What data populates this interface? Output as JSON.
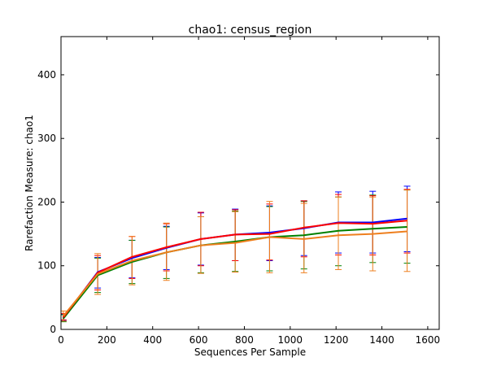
{
  "chart_data": {
    "type": "line",
    "title": "chao1: census_region",
    "xlabel": "Sequences Per Sample",
    "ylabel": "Rarefaction Measure: chao1",
    "xlim": [
      0,
      1650
    ],
    "ylim": [
      0,
      460
    ],
    "xticks": [
      0,
      200,
      400,
      600,
      800,
      1000,
      1200,
      1400,
      1600
    ],
    "yticks": [
      0,
      100,
      200,
      300,
      400
    ],
    "x": [
      10,
      160,
      310,
      460,
      610,
      760,
      910,
      1060,
      1210,
      1360,
      1510
    ],
    "series": [
      {
        "name": "blue",
        "color": "#0000ff",
        "values": [
          18,
          90,
          112,
          128,
          142,
          149,
          152,
          159,
          168,
          168,
          174
        ],
        "err_low": [
          14,
          65,
          81,
          94,
          101,
          108,
          108,
          116,
          120,
          120,
          122
        ],
        "err_high": [
          24,
          113,
          140,
          162,
          183,
          189,
          194,
          202,
          216,
          217,
          225
        ]
      },
      {
        "name": "green",
        "color": "#008000",
        "values": [
          17,
          85,
          106,
          121,
          132,
          138,
          145,
          148,
          155,
          158,
          161
        ],
        "err_low": [
          12,
          58,
          72,
          80,
          89,
          91,
          92,
          95,
          100,
          105,
          104
        ],
        "err_high": [
          23,
          112,
          140,
          161,
          177,
          186,
          193,
          201,
          208,
          211,
          219
        ]
      },
      {
        "name": "red",
        "color": "#ff0000",
        "values": [
          19,
          89,
          114,
          129,
          142,
          149,
          150,
          160,
          167,
          166,
          171
        ],
        "err_low": [
          15,
          62,
          80,
          92,
          100,
          108,
          109,
          114,
          117,
          117,
          120
        ],
        "err_high": [
          25,
          116,
          146,
          166,
          184,
          188,
          197,
          202,
          212,
          210,
          220
        ]
      },
      {
        "name": "orange",
        "color": "#ee7f1e",
        "values": [
          21,
          87,
          108,
          121,
          132,
          136,
          145,
          142,
          148,
          150,
          154
        ],
        "err_low": [
          13,
          55,
          70,
          77,
          88,
          90,
          89,
          89,
          94,
          92,
          91
        ],
        "err_high": [
          29,
          119,
          146,
          167,
          177,
          185,
          201,
          198,
          208,
          208,
          219
        ]
      }
    ]
  }
}
